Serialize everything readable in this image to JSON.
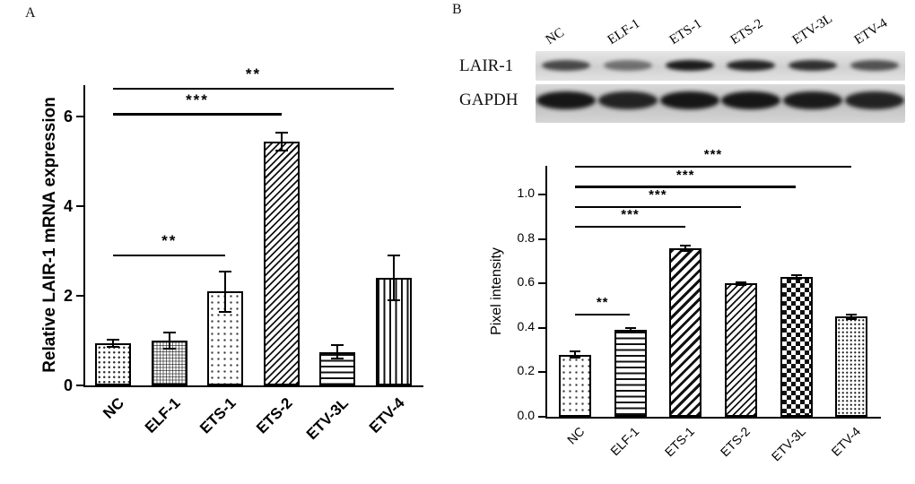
{
  "figure": {
    "panel_a_label": "A",
    "panel_b_label": "B"
  },
  "blot": {
    "lanes": [
      "NC",
      "ELF-1",
      "ETS-1",
      "ETS-2",
      "ETV-3L",
      "ETV-4"
    ],
    "rows": [
      {
        "label": "LAIR-1",
        "band_intensities": [
          0.7,
          0.5,
          0.92,
          0.88,
          0.82,
          0.65
        ]
      },
      {
        "label": "GAPDH",
        "band_intensities": [
          0.95,
          0.88,
          0.95,
          0.95,
          0.92,
          0.88
        ]
      }
    ]
  },
  "chart_data": [
    {
      "type": "bar",
      "title": "",
      "xlabel": "",
      "ylabel": "Relative LAIR-1 mRNA expression",
      "categories": [
        "NC",
        "ELF-1",
        "ETS-1",
        "ETS-2",
        "ETV-3L",
        "ETV-4"
      ],
      "values": [
        0.95,
        1.0,
        2.1,
        5.45,
        0.75,
        2.4
      ],
      "errors": [
        0.08,
        0.18,
        0.45,
        0.2,
        0.15,
        0.5
      ],
      "ylim": [
        0,
        6
      ],
      "yticks": [
        0,
        2,
        4,
        6
      ],
      "ytick_labels": [
        "0",
        "2",
        "4",
        "6"
      ],
      "grid": false,
      "legend": "none",
      "bar_patterns": [
        "dots-med",
        "grid",
        "dots-sparse",
        "diag-fine",
        "horiz",
        "vert"
      ],
      "significance": [
        {
          "from": "NC",
          "to": "ETS-1",
          "label": "**",
          "y": 2.9
        },
        {
          "from": "NC",
          "to": "ETS-2",
          "label": "***",
          "y": 6.05
        },
        {
          "from": "NC",
          "to": "ETV-4",
          "label": "**",
          "y": 6.62
        }
      ]
    },
    {
      "type": "bar",
      "title": "",
      "xlabel": "",
      "ylabel": "Pixel intensity",
      "categories": [
        "NC",
        "ELF-1",
        "ETS-1",
        "ETS-2",
        "ETV-3L",
        "ETV-4"
      ],
      "values": [
        0.28,
        0.39,
        0.76,
        0.6,
        0.63,
        0.45
      ],
      "errors": [
        0.015,
        0.008,
        0.012,
        0.006,
        0.008,
        0.012
      ],
      "ylim": [
        0,
        1.0
      ],
      "yticks": [
        0,
        0.2,
        0.4,
        0.6,
        0.8,
        1.0
      ],
      "ytick_labels": [
        "0.0",
        "0.2",
        "0.4",
        "0.6",
        "0.8",
        "1.0"
      ],
      "grid": false,
      "legend": "none",
      "bar_patterns": [
        "dots-sparse",
        "horiz",
        "diag-bold",
        "diag-fine",
        "checker",
        "dots-dense"
      ],
      "significance": [
        {
          "from": "NC",
          "to": "ELF-1",
          "label": "**",
          "y": 0.46
        },
        {
          "from": "NC",
          "to": "ETS-1",
          "label": "***",
          "y": 0.855
        },
        {
          "from": "NC",
          "to": "ETS-2",
          "label": "***",
          "y": 0.945
        },
        {
          "from": "NC",
          "to": "ETV-3L",
          "label": "***",
          "y": 1.035
        },
        {
          "from": "NC",
          "to": "ETV-4",
          "label": "***",
          "y": 1.125
        }
      ]
    }
  ]
}
